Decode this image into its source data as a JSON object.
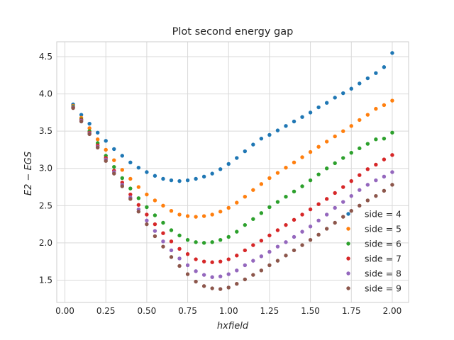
{
  "chart_data": {
    "type": "scatter",
    "title": "Plot second energy gap",
    "xlabel": "hxfield",
    "ylabel": "E2 − EGS",
    "xlim": [
      -0.05,
      2.1
    ],
    "ylim": [
      1.2,
      4.7
    ],
    "xticks": [
      0.0,
      0.25,
      0.5,
      0.75,
      1.0,
      1.25,
      1.5,
      1.75,
      2.0
    ],
    "xtick_labels": [
      "0.00",
      "0.25",
      "0.50",
      "0.75",
      "1.00",
      "1.25",
      "1.50",
      "1.75",
      "2.00"
    ],
    "yticks": [
      1.5,
      2.0,
      2.5,
      3.0,
      3.5,
      4.0,
      4.5
    ],
    "ytick_labels": [
      "1.5",
      "2.0",
      "2.5",
      "3.0",
      "3.5",
      "4.0",
      "4.5"
    ],
    "grid": true,
    "legend_position": "lower-right",
    "x": [
      0.05,
      0.1,
      0.15,
      0.2,
      0.25,
      0.3,
      0.35,
      0.4,
      0.45,
      0.5,
      0.55,
      0.6,
      0.65,
      0.7,
      0.75,
      0.8,
      0.85,
      0.9,
      0.95,
      1.0,
      1.05,
      1.1,
      1.15,
      1.2,
      1.25,
      1.3,
      1.35,
      1.4,
      1.45,
      1.5,
      1.55,
      1.6,
      1.65,
      1.7,
      1.75,
      1.8,
      1.85,
      1.9,
      1.95,
      2.0
    ],
    "series": [
      {
        "name": "side = 4",
        "color": "#1f77b4",
        "values": [
          3.86,
          3.72,
          3.6,
          3.48,
          3.37,
          3.26,
          3.17,
          3.08,
          3.01,
          2.95,
          2.9,
          2.86,
          2.84,
          2.83,
          2.84,
          2.86,
          2.89,
          2.93,
          2.99,
          3.06,
          3.14,
          3.23,
          3.32,
          3.4,
          3.45,
          3.51,
          3.57,
          3.63,
          3.69,
          3.75,
          3.82,
          3.88,
          3.95,
          4.01,
          4.07,
          4.14,
          4.21,
          4.28,
          4.36,
          4.55
        ]
      },
      {
        "name": "side = 5",
        "color": "#ff7f0e",
        "values": [
          3.84,
          3.68,
          3.54,
          3.39,
          3.25,
          3.11,
          2.98,
          2.86,
          2.75,
          2.65,
          2.57,
          2.5,
          2.43,
          2.38,
          2.36,
          2.35,
          2.36,
          2.38,
          2.42,
          2.47,
          2.54,
          2.62,
          2.71,
          2.79,
          2.87,
          2.94,
          3.01,
          3.08,
          3.15,
          3.22,
          3.29,
          3.36,
          3.43,
          3.5,
          3.57,
          3.65,
          3.72,
          3.8,
          3.85,
          3.91
        ]
      },
      {
        "name": "side = 6",
        "color": "#2ca02c",
        "values": [
          3.83,
          3.66,
          3.5,
          3.34,
          3.17,
          3.02,
          2.87,
          2.73,
          2.6,
          2.48,
          2.37,
          2.27,
          2.17,
          2.1,
          2.04,
          2.01,
          2.0,
          2.01,
          2.04,
          2.08,
          2.15,
          2.24,
          2.32,
          2.4,
          2.48,
          2.55,
          2.62,
          2.69,
          2.76,
          2.84,
          2.92,
          3.0,
          3.07,
          3.14,
          3.21,
          3.27,
          3.33,
          3.39,
          3.4,
          3.48
        ]
      },
      {
        "name": "side = 7",
        "color": "#d62728",
        "values": [
          3.82,
          3.65,
          3.48,
          3.31,
          3.14,
          2.97,
          2.81,
          2.65,
          2.51,
          2.38,
          2.25,
          2.13,
          2.02,
          1.92,
          1.85,
          1.78,
          1.75,
          1.74,
          1.75,
          1.78,
          1.83,
          1.9,
          1.97,
          2.03,
          2.1,
          2.17,
          2.24,
          2.31,
          2.38,
          2.45,
          2.52,
          2.59,
          2.67,
          2.75,
          2.83,
          2.91,
          2.99,
          3.05,
          3.12,
          3.18
        ]
      },
      {
        "name": "side = 8",
        "color": "#9467bd",
        "values": [
          3.82,
          3.64,
          3.47,
          3.29,
          3.12,
          2.95,
          2.78,
          2.61,
          2.45,
          2.3,
          2.16,
          2.02,
          1.9,
          1.79,
          1.7,
          1.62,
          1.57,
          1.54,
          1.55,
          1.58,
          1.63,
          1.7,
          1.76,
          1.82,
          1.88,
          1.95,
          2.01,
          2.08,
          2.15,
          2.22,
          2.3,
          2.38,
          2.47,
          2.55,
          2.63,
          2.71,
          2.78,
          2.84,
          2.89,
          2.95
        ]
      },
      {
        "name": "side = 9",
        "color": "#8c564b",
        "values": [
          3.81,
          3.63,
          3.46,
          3.28,
          3.1,
          2.93,
          2.76,
          2.59,
          2.42,
          2.25,
          2.09,
          1.95,
          1.81,
          1.69,
          1.58,
          1.48,
          1.42,
          1.39,
          1.38,
          1.4,
          1.45,
          1.51,
          1.57,
          1.63,
          1.7,
          1.76,
          1.83,
          1.9,
          1.97,
          2.04,
          2.11,
          2.19,
          2.27,
          2.35,
          2.43,
          2.5,
          2.57,
          2.63,
          2.7,
          2.78
        ]
      }
    ]
  }
}
